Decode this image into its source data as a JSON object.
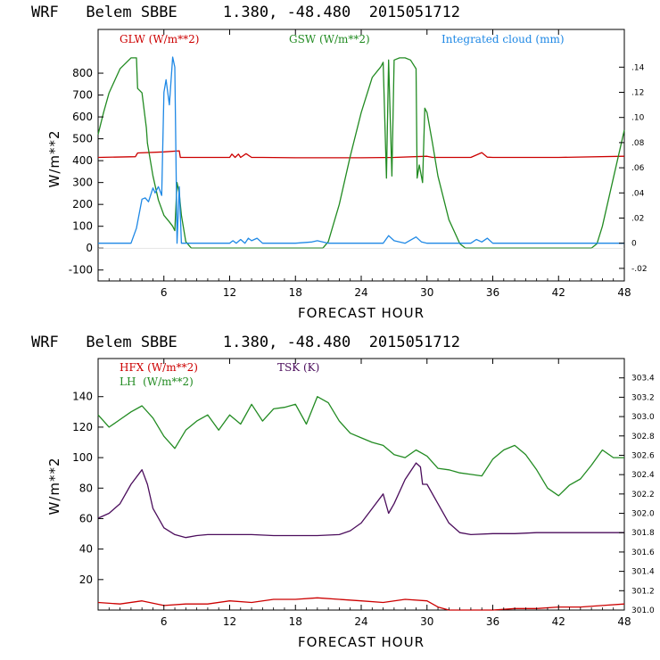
{
  "chart_data": [
    {
      "type": "line",
      "title": "WRF   Belem SBBE     1.380, -48.480  2015051712",
      "xlabel": "FORECAST HOUR",
      "ylabel": "W/m**2",
      "xlim": [
        0,
        48
      ],
      "ylim": [
        -150,
        1000
      ],
      "xticks": [
        6,
        12,
        18,
        24,
        30,
        36,
        42,
        48
      ],
      "yticks": [
        -100,
        0,
        100,
        200,
        300,
        400,
        500,
        600,
        700,
        800
      ],
      "y2lim": [
        -0.03,
        0.17
      ],
      "y2ticks": [
        -0.02,
        0,
        0.02,
        0.04,
        0.06,
        0.08,
        0.1,
        0.12,
        0.14
      ],
      "y2ticklabels": [
        "-.02",
        "0",
        ".02",
        ".04",
        ".06",
        ".08",
        ".10",
        ".12",
        ".14"
      ],
      "series": [
        {
          "name": "GLW (W/m**2)",
          "axis": "left",
          "color": "#cc0000",
          "x": [
            0,
            3.4,
            3.6,
            6,
            7.4,
            7.5,
            12,
            12.2,
            12.5,
            12.8,
            13,
            13.5,
            14,
            15,
            18,
            20,
            24,
            27,
            30,
            30.5,
            34,
            35,
            35.5,
            36,
            42,
            48
          ],
          "y": [
            415,
            418,
            435,
            440,
            445,
            415,
            415,
            430,
            415,
            430,
            415,
            432,
            415,
            415,
            413,
            413,
            413,
            415,
            420,
            415,
            415,
            437,
            416,
            415,
            415,
            420
          ]
        },
        {
          "name": "GSW (W/m**2)",
          "axis": "left",
          "color": "#228b22",
          "x": [
            0,
            0.5,
            1,
            2,
            3,
            3.5,
            3.6,
            4,
            4.4,
            4.5,
            5,
            5.5,
            6,
            6.5,
            6.8,
            7,
            7.2,
            7.4,
            7.6,
            8,
            8.5,
            9,
            20.5,
            21,
            22,
            23,
            24,
            25,
            25.8,
            26,
            26.3,
            26.5,
            26.8,
            27,
            27.5,
            28,
            28.5,
            29,
            29.1,
            29.3,
            29.6,
            29.8,
            30,
            30.5,
            31,
            32,
            33,
            33.5,
            45,
            45.5,
            46,
            47,
            48
          ],
          "y": [
            520,
            620,
            710,
            820,
            870,
            870,
            730,
            710,
            550,
            480,
            330,
            220,
            150,
            120,
            100,
            80,
            300,
            250,
            150,
            30,
            0,
            0,
            0,
            30,
            200,
            420,
            620,
            780,
            830,
            850,
            320,
            860,
            330,
            860,
            870,
            870,
            860,
            820,
            320,
            380,
            300,
            640,
            620,
            480,
            330,
            130,
            20,
            0,
            0,
            20,
            100,
            320,
            540
          ]
        },
        {
          "name": "Integrated cloud (mm)",
          "axis": "right",
          "color": "#1e88e5",
          "x": [
            0,
            3,
            3.5,
            4,
            4.3,
            4.6,
            5,
            5.2,
            5.5,
            5.8,
            6,
            6.2,
            6.5,
            6.8,
            7,
            7.2,
            7.4,
            7.6,
            12,
            12.3,
            12.6,
            13,
            13.4,
            13.7,
            14,
            14.5,
            15,
            18,
            19.5,
            20,
            21,
            26,
            26.5,
            27,
            28,
            29,
            29.5,
            30,
            34,
            34.5,
            35,
            35.5,
            36,
            48
          ],
          "y": [
            0,
            0,
            0.012,
            0.035,
            0.036,
            0.033,
            0.044,
            0.04,
            0.045,
            0.038,
            0.12,
            0.13,
            0.11,
            0.148,
            0.14,
            0.0,
            0.045,
            0.0,
            0,
            0.002,
            0,
            0.003,
            0,
            0.004,
            0.002,
            0.004,
            0,
            0,
            0.001,
            0.002,
            0,
            0,
            0.006,
            0.002,
            0,
            0.005,
            0.001,
            0,
            0,
            0.003,
            0.001,
            0.004,
            0,
            0
          ]
        }
      ]
    },
    {
      "type": "line",
      "title": "WRF   Belem SBBE     1.380, -48.480  2015051712",
      "xlabel": "FORECAST HOUR",
      "ylabel": "W/m**2",
      "xlim": [
        0,
        48
      ],
      "ylim": [
        0,
        165
      ],
      "xticks": [
        6,
        12,
        18,
        24,
        30,
        36,
        42,
        48
      ],
      "yticks": [
        20,
        40,
        60,
        80,
        100,
        120,
        140
      ],
      "y2lim": [
        301.0,
        303.6
      ],
      "y2ticks": [
        301.0,
        301.2,
        301.4,
        301.6,
        301.8,
        302.0,
        302.2,
        302.4,
        302.6,
        302.8,
        303.0,
        303.2,
        303.4
      ],
      "y2ticklabels": [
        "301.0",
        "301.2",
        "301.4",
        "301.6",
        "301.8",
        "302.0",
        "302.2",
        "302.4",
        "302.6",
        "302.8",
        "303.0",
        "303.2",
        "303.4"
      ],
      "series": [
        {
          "name": "HFX (W/m**2)",
          "axis": "left",
          "color": "#cc0000",
          "x": [
            0,
            2,
            4,
            6,
            8,
            10,
            12,
            14,
            16,
            18,
            20,
            22,
            24,
            26,
            28,
            30,
            31,
            32,
            34,
            36,
            38,
            40,
            42,
            44,
            46,
            48
          ],
          "y": [
            5,
            4,
            6,
            3,
            4,
            4,
            6,
            5,
            7,
            7,
            8,
            7,
            6,
            5,
            7,
            6,
            2,
            0,
            0,
            0,
            1,
            1,
            2,
            2,
            3,
            4
          ]
        },
        {
          "name": "LH  (W/m**2)",
          "axis": "left",
          "color": "#228b22",
          "x": [
            0,
            1,
            2,
            3,
            4,
            5,
            6,
            7,
            8,
            9,
            10,
            11,
            12,
            13,
            14,
            15,
            16,
            17,
            18,
            19,
            20,
            21,
            22,
            23,
            24,
            25,
            26,
            27,
            28,
            29,
            30,
            31,
            32,
            33,
            34,
            35,
            36,
            37,
            38,
            39,
            40,
            41,
            42,
            43,
            44,
            45,
            46,
            47,
            48
          ],
          "y": [
            128,
            120,
            125,
            130,
            134,
            126,
            114,
            106,
            118,
            124,
            128,
            118,
            128,
            122,
            135,
            124,
            132,
            133,
            135,
            122,
            140,
            136,
            124,
            116,
            113,
            110,
            108,
            102,
            100,
            105,
            101,
            93,
            92,
            90,
            89,
            88,
            99,
            105,
            108,
            102,
            92,
            80,
            75,
            82,
            86,
            95,
            105,
            100,
            100
          ]
        },
        {
          "name": "TSK (K)",
          "axis": "right",
          "color": "#4b0d5c",
          "x": [
            0,
            1,
            2,
            3,
            4,
            4.5,
            5,
            6,
            7,
            8,
            9,
            10,
            12,
            14,
            16,
            18,
            20,
            22,
            23,
            24,
            25,
            26,
            26.5,
            27,
            28,
            29,
            29.4,
            29.6,
            30,
            31,
            32,
            33,
            34,
            36,
            38,
            40,
            42,
            44,
            46,
            48
          ],
          "y": [
            301.95,
            302.0,
            302.1,
            302.3,
            302.45,
            302.3,
            302.05,
            301.85,
            301.78,
            301.75,
            301.77,
            301.78,
            301.78,
            301.78,
            301.77,
            301.77,
            301.77,
            301.78,
            301.82,
            301.9,
            302.05,
            302.2,
            302.0,
            302.1,
            302.35,
            302.52,
            302.48,
            302.3,
            302.3,
            302.1,
            301.9,
            301.8,
            301.78,
            301.79,
            301.79,
            301.8,
            301.8,
            301.8,
            301.8,
            301.8
          ]
        }
      ]
    }
  ]
}
